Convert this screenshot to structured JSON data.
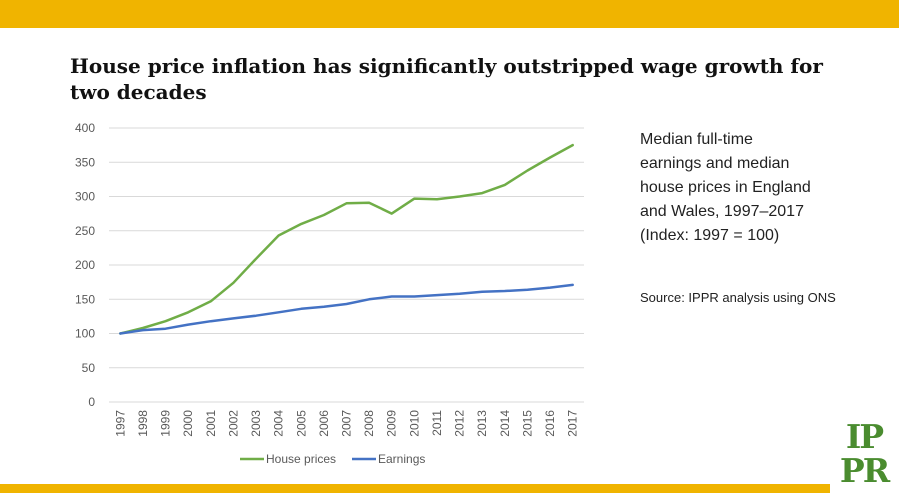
{
  "colors": {
    "bar": "#f0b400",
    "house_prices": "#70ad47",
    "earnings": "#4472c4",
    "grid": "#d9d9d9",
    "logo": "#4a8c2f"
  },
  "description": "Median full-time\nearnings and median\nhouse prices in England\nand Wales, 1997–2017\n(Index: 1997 = 100)",
  "source": "Source: IPPR analysis using ONS",
  "logo": {
    "line1": "IP",
    "line2": "PR"
  },
  "chart_data": {
    "type": "line",
    "title": "House price inflation has significantly outstripped wage growth for two decades",
    "xlabel": "",
    "ylabel": "",
    "x": [
      "1997",
      "1998",
      "1999",
      "2000",
      "2001",
      "2002",
      "2003",
      "2004",
      "2005",
      "2006",
      "2007",
      "2008",
      "2009",
      "2010",
      "2011",
      "2012",
      "2013",
      "2014",
      "2015",
      "2016",
      "2017"
    ],
    "ylim": [
      0,
      400
    ],
    "yticks": [
      0,
      50,
      100,
      150,
      200,
      250,
      300,
      350,
      400
    ],
    "grid": true,
    "legend": "bottom",
    "series": [
      {
        "name": "House prices",
        "values": [
          100,
          108,
          118,
          131,
          147,
          174,
          209,
          243,
          260,
          273,
          290,
          291,
          275,
          297,
          296,
          300,
          305,
          317,
          338,
          357,
          375
        ]
      },
      {
        "name": "Earnings",
        "values": [
          100,
          105,
          107,
          113,
          118,
          122,
          126,
          131,
          136,
          139,
          143,
          150,
          154,
          154,
          156,
          158,
          161,
          162,
          164,
          167,
          171
        ]
      }
    ]
  }
}
